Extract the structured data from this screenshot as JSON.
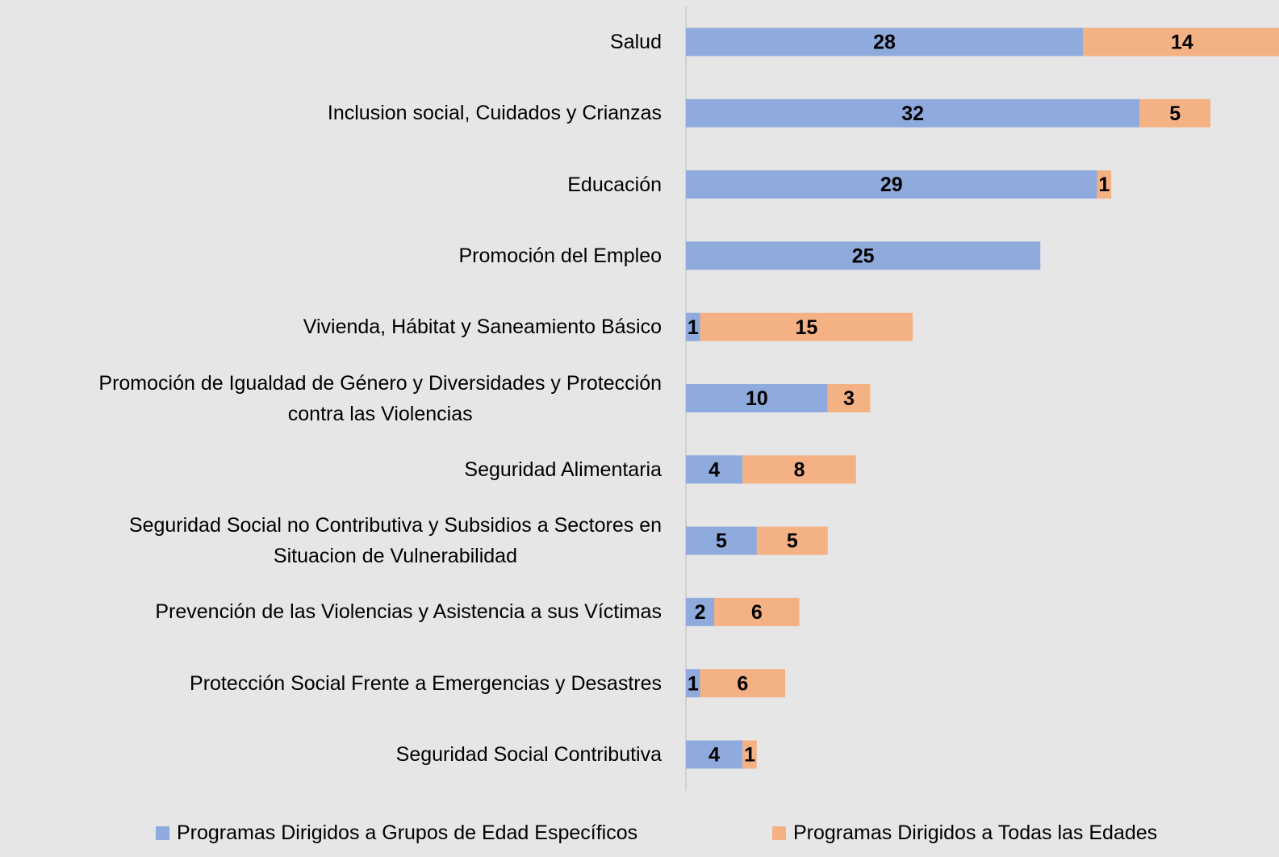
{
  "chart_data": {
    "type": "stacked-bar-horizontal",
    "categories": [
      "Salud",
      "Inclusion social, Cuidados y Crianzas",
      "Educación",
      "Promoción del Empleo",
      "Vivienda, Hábitat y Saneamiento Básico",
      "Promoción de Igualdad de  Género y Diversidades y Protección\ncontra las Violencias",
      "Seguridad Alimentaria",
      "Seguridad Social no Contributiva y Subsidios a Sectores en\nSituacion de Vulnerabilidad",
      "Prevención de las Violencias y Asistencia a sus Víctimas",
      "Protección Social Frente a Emergencias y Desastres",
      "Seguridad Social Contributiva"
    ],
    "series": [
      {
        "name": "Programas Dirigidos a Grupos de Edad  Específicos",
        "color": "#8faadc",
        "values": [
          28,
          32,
          29,
          25,
          1,
          10,
          4,
          5,
          2,
          1,
          4
        ]
      },
      {
        "name": "Programas Dirigidos a Todas las Edades",
        "color": "#f4b183",
        "values": [
          14,
          5,
          1,
          0,
          15,
          3,
          8,
          5,
          6,
          6,
          1
        ]
      }
    ],
    "legend": "bottom"
  }
}
